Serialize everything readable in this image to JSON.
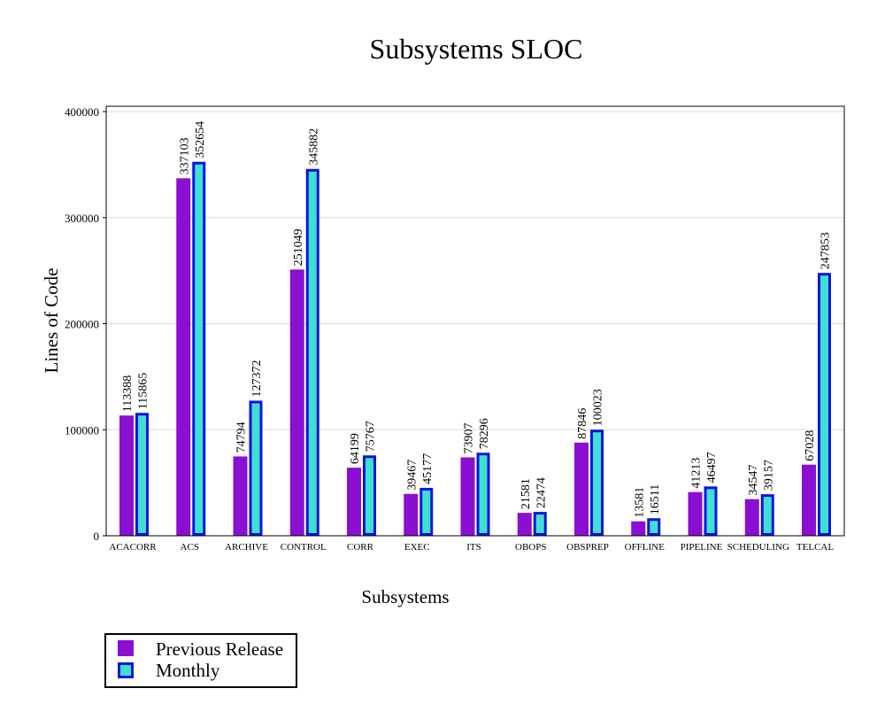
{
  "chart_data": {
    "type": "bar",
    "title": "Subsystems SLOC",
    "xlabel": "Subsystems",
    "ylabel": "Lines of Code",
    "ylim": [
      0,
      400000
    ],
    "yticks": [
      "0",
      "100000",
      "200000",
      "300000",
      "400000"
    ],
    "grid": true,
    "legend_position": "bottom-left",
    "categories": [
      "ACACORR",
      "ACS",
      "ARCHIVE",
      "CONTROL",
      "CORR",
      "EXEC",
      "ITS",
      "OBOPS",
      "OBSPREP",
      "OFFLINE",
      "PIPELINE",
      "SCHEDULING",
      "TELCAL"
    ],
    "series": [
      {
        "name": "Previous Release",
        "color": "#8a0fd2",
        "values": [
          113388,
          337103,
          74794,
          251049,
          64199,
          39467,
          73907,
          21581,
          87846,
          13581,
          41213,
          34547,
          67028
        ]
      },
      {
        "name": "Monthly",
        "color": "#40e0d0",
        "border_color": "#0a14e0",
        "values": [
          115865,
          352654,
          127372,
          345882,
          75767,
          45177,
          78296,
          22474,
          100023,
          16511,
          46497,
          39157,
          247853
        ]
      }
    ]
  }
}
